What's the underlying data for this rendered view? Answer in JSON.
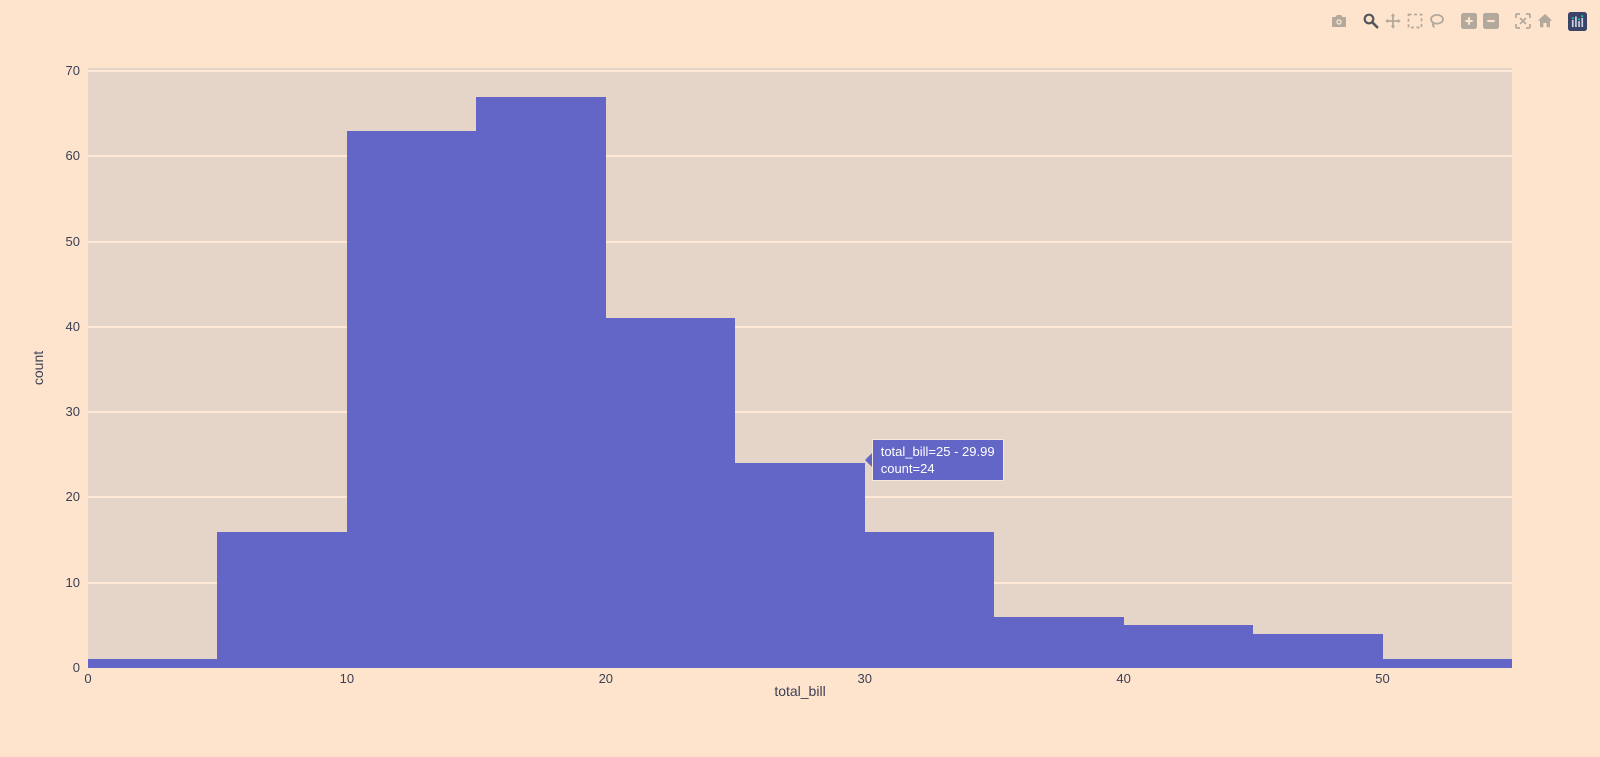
{
  "colors": {
    "page_bg": "#ffe4cd",
    "plot_bg": "#e5d5c8",
    "gridline": "#ffe8d5",
    "bar": "#6366c7",
    "tick_text": "#3b3f54",
    "tooltip_bg": "#6366c7",
    "tooltip_text": "#ffffff",
    "tooltip_border": "#f6e8d9",
    "modebar_icon": "#b2a89c",
    "modebar_icon_active": "#54565c",
    "logo_bg": "#3b4468",
    "logo_accent": "#1bc0a5"
  },
  "modebar": {
    "buttons": [
      "download-plot-as-png",
      "zoom",
      "pan",
      "box-select",
      "lasso-select",
      "zoom-in",
      "zoom-out",
      "autoscale",
      "reset-axes",
      "plotly-logo"
    ],
    "active_button": "zoom"
  },
  "chart_data": {
    "type": "histogram",
    "title": "",
    "xlabel": "total_bill",
    "ylabel": "count",
    "bin_width": 5,
    "bin_starts": [
      0,
      5,
      10,
      15,
      20,
      25,
      30,
      35,
      40,
      45,
      50
    ],
    "counts": [
      1,
      16,
      63,
      67,
      41,
      24,
      16,
      6,
      5,
      4,
      1
    ],
    "xticks": [
      0,
      10,
      20,
      30,
      40,
      50
    ],
    "yticks": [
      0,
      10,
      20,
      30,
      40,
      50,
      60,
      70
    ],
    "xlim": [
      0,
      55
    ],
    "ylim": [
      0,
      70.35
    ],
    "grid": "horizontal-only",
    "legend": "none"
  },
  "tooltip": {
    "lines": [
      "total_bill=25 - 29.99",
      "count=24"
    ],
    "anchor_bin_index": 5
  }
}
